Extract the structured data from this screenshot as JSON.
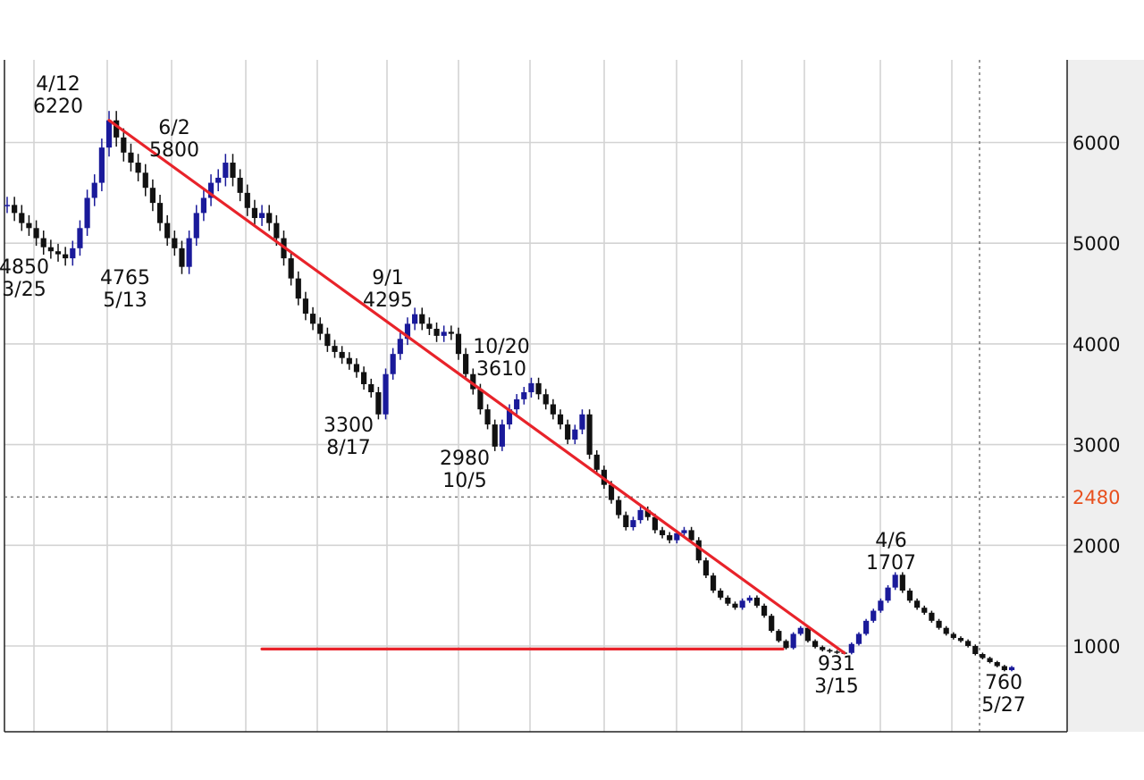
{
  "chart_data": {
    "type": "candlestick",
    "title": "",
    "xlabel": "",
    "ylabel": "",
    "ylim": [
      400,
      6800
    ],
    "y_ticks": [
      1000,
      2000,
      3000,
      4000,
      5000,
      6000
    ],
    "x_labels": [],
    "grid": true,
    "reference_line": {
      "value": 2480,
      "label": "2480",
      "style": "dotted",
      "color": "#e8501e"
    },
    "annotations": [
      {
        "date": "3/25",
        "value": 4850,
        "date_label": "3/25",
        "value_label": "4850"
      },
      {
        "date": "4/12",
        "value": 6220,
        "date_label": "4/12",
        "value_label": "6220"
      },
      {
        "date": "5/13",
        "value": 4765,
        "date_label": "5/13",
        "value_label": "4765"
      },
      {
        "date": "6/2",
        "value": 5800,
        "date_label": "6/2",
        "value_label": "5800"
      },
      {
        "date": "8/17",
        "value": 3300,
        "date_label": "8/17",
        "value_label": "3300"
      },
      {
        "date": "9/1",
        "value": 4295,
        "date_label": "9/1",
        "value_label": "4295"
      },
      {
        "date": "10/5",
        "value": 2980,
        "date_label": "10/5",
        "value_label": "2980"
      },
      {
        "date": "10/20",
        "value": 3610,
        "date_label": "10/20",
        "value_label": "3610"
      },
      {
        "date": "3/15",
        "value": 931,
        "date_label": "3/15",
        "value_label": "931"
      },
      {
        "date": "4/6",
        "value": 1707,
        "date_label": "4/6",
        "value_label": "1707"
      },
      {
        "date": "5/27",
        "value": 760,
        "date_label": "5/27",
        "value_label": "760"
      }
    ],
    "trendlines": [
      {
        "from": {
          "date": "4/12",
          "value": 6220
        },
        "to": {
          "date": "3/15",
          "value": 931
        },
        "color": "#e8232a"
      },
      {
        "from": {
          "date": "1/21",
          "value": 970
        },
        "to": {
          "date": "6/20",
          "value": 970
        },
        "color": "#e8232a"
      }
    ],
    "series": [
      {
        "type": "price",
        "colors": {
          "up": "#1a1a9a",
          "down": "#111111"
        },
        "points": [
          [
            "3/1",
            5380
          ],
          [
            "3/4",
            5300
          ],
          [
            "3/7",
            5200
          ],
          [
            "3/10",
            5150
          ],
          [
            "3/13",
            5050
          ],
          [
            "3/16",
            4960
          ],
          [
            "3/19",
            4920
          ],
          [
            "3/22",
            4890
          ],
          [
            "3/25",
            4850
          ],
          [
            "3/28",
            4950
          ],
          [
            "3/31",
            5150
          ],
          [
            "4/3",
            5450
          ],
          [
            "4/6",
            5600
          ],
          [
            "4/9",
            5950
          ],
          [
            "4/12",
            6220
          ],
          [
            "4/15",
            6050
          ],
          [
            "4/18",
            5900
          ],
          [
            "4/21",
            5800
          ],
          [
            "4/24",
            5700
          ],
          [
            "4/27",
            5550
          ],
          [
            "4/30",
            5400
          ],
          [
            "5/3",
            5200
          ],
          [
            "5/6",
            5050
          ],
          [
            "5/9",
            4950
          ],
          [
            "5/13",
            4765
          ],
          [
            "5/16",
            5050
          ],
          [
            "5/19",
            5300
          ],
          [
            "5/22",
            5450
          ],
          [
            "5/25",
            5600
          ],
          [
            "5/29",
            5650
          ],
          [
            "6/2",
            5800
          ],
          [
            "6/5",
            5650
          ],
          [
            "6/8",
            5500
          ],
          [
            "6/12",
            5350
          ],
          [
            "6/16",
            5250
          ],
          [
            "6/20",
            5300
          ],
          [
            "6/24",
            5200
          ],
          [
            "6/28",
            5050
          ],
          [
            "7/2",
            4850
          ],
          [
            "7/6",
            4650
          ],
          [
            "7/10",
            4450
          ],
          [
            "7/14",
            4300
          ],
          [
            "7/18",
            4200
          ],
          [
            "7/22",
            4100
          ],
          [
            "7/26",
            3980
          ],
          [
            "7/30",
            3920
          ],
          [
            "8/3",
            3860
          ],
          [
            "8/6",
            3800
          ],
          [
            "8/9",
            3720
          ],
          [
            "8/12",
            3600
          ],
          [
            "8/15",
            3520
          ],
          [
            "8/17",
            3300
          ],
          [
            "8/20",
            3700
          ],
          [
            "8/23",
            3900
          ],
          [
            "8/26",
            4050
          ],
          [
            "8/29",
            4200
          ],
          [
            "9/1",
            4295
          ],
          [
            "9/4",
            4200
          ],
          [
            "9/7",
            4150
          ],
          [
            "9/10",
            4080
          ],
          [
            "9/13",
            4120
          ],
          [
            "9/16",
            4100
          ],
          [
            "9/19",
            3900
          ],
          [
            "9/22",
            3700
          ],
          [
            "9/25",
            3550
          ],
          [
            "9/28",
            3350
          ],
          [
            "10/1",
            3200
          ],
          [
            "10/5",
            2980
          ],
          [
            "10/8",
            3200
          ],
          [
            "10/11",
            3350
          ],
          [
            "10/14",
            3450
          ],
          [
            "10/17",
            3520
          ],
          [
            "10/20",
            3610
          ],
          [
            "10/23",
            3500
          ],
          [
            "10/26",
            3400
          ],
          [
            "10/29",
            3300
          ],
          [
            "11/1",
            3200
          ],
          [
            "11/4",
            3050
          ],
          [
            "11/7",
            3150
          ],
          [
            "11/9",
            3300
          ],
          [
            "11/11",
            2900
          ],
          [
            "11/14",
            2750
          ],
          [
            "11/17",
            2600
          ],
          [
            "11/20",
            2450
          ],
          [
            "11/23",
            2300
          ],
          [
            "11/26",
            2180
          ],
          [
            "11/29",
            2250
          ],
          [
            "12/2",
            2350
          ],
          [
            "12/5",
            2280
          ],
          [
            "12/8",
            2150
          ],
          [
            "12/11",
            2100
          ],
          [
            "12/14",
            2050
          ],
          [
            "12/17",
            2120
          ],
          [
            "12/20",
            2150
          ],
          [
            "12/23",
            2050
          ],
          [
            "12/27",
            1850
          ],
          [
            "12/31",
            1700
          ],
          [
            "1/4",
            1550
          ],
          [
            "1/8",
            1480
          ],
          [
            "1/12",
            1420
          ],
          [
            "1/16",
            1380
          ],
          [
            "1/20",
            1450
          ],
          [
            "1/24",
            1480
          ],
          [
            "1/28",
            1400
          ],
          [
            "2/1",
            1300
          ],
          [
            "2/5",
            1150
          ],
          [
            "2/9",
            1050
          ],
          [
            "2/13",
            980
          ],
          [
            "2/17",
            1120
          ],
          [
            "2/21",
            1180
          ],
          [
            "2/25",
            1050
          ],
          [
            "2/29",
            990
          ],
          [
            "3/4",
            960
          ],
          [
            "3/8",
            945
          ],
          [
            "3/12",
            935
          ],
          [
            "3/15",
            931
          ],
          [
            "3/18",
            1020
          ],
          [
            "3/21",
            1120
          ],
          [
            "3/24",
            1250
          ],
          [
            "3/27",
            1350
          ],
          [
            "3/30",
            1450
          ],
          [
            "4/2",
            1580
          ],
          [
            "4/6",
            1707
          ],
          [
            "4/9",
            1550
          ],
          [
            "4/12",
            1450
          ],
          [
            "4/16",
            1380
          ],
          [
            "4/20",
            1330
          ],
          [
            "4/24",
            1250
          ],
          [
            "4/28",
            1180
          ],
          [
            "5/2",
            1120
          ],
          [
            "5/6",
            1080
          ],
          [
            "5/10",
            1050
          ],
          [
            "5/13",
            1000
          ],
          [
            "5/16",
            920
          ],
          [
            "5/19",
            880
          ],
          [
            "5/22",
            840
          ],
          [
            "5/25",
            800
          ],
          [
            "5/27",
            760
          ],
          [
            "5/30",
            790
          ]
        ]
      }
    ]
  }
}
